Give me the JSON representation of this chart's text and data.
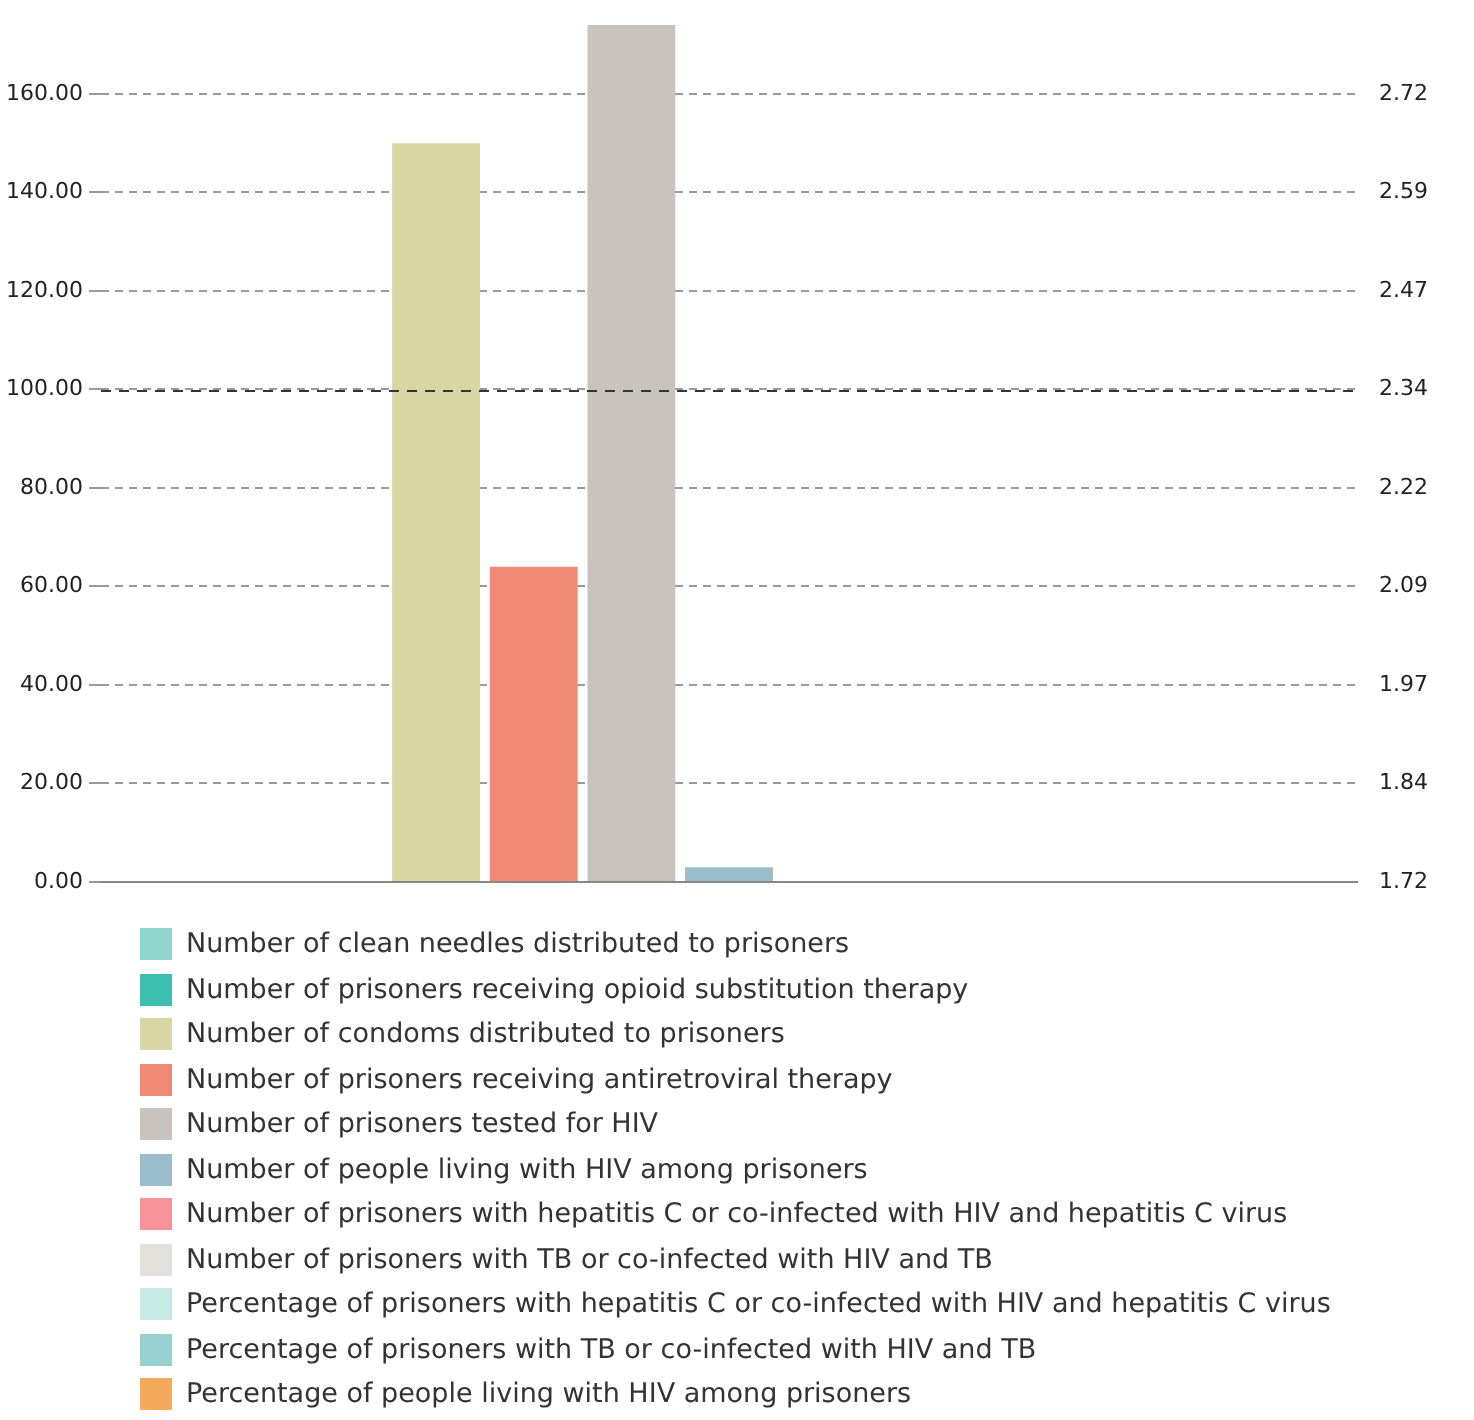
{
  "chart_data": {
    "type": "bar",
    "categories": [
      null
    ],
    "series": [
      {
        "name": "Number of clean needles distributed to prisoners",
        "color": "#8fd5cc",
        "values": [
          null
        ]
      },
      {
        "name": "Number of prisoners receiving opioid substitution therapy",
        "color": "#3cbfae",
        "values": [
          null
        ]
      },
      {
        "name": "Number of condoms distributed to prisoners",
        "color": "#d8d6a3",
        "values": [
          150
        ]
      },
      {
        "name": "Number of prisoners receiving antiretroviral therapy",
        "color": "#f08a75",
        "values": [
          64
        ]
      },
      {
        "name": "Number of prisoners tested for HIV",
        "color": "#c9c3be",
        "values": [
          174
        ]
      },
      {
        "name": "Number of people living with HIV among prisoners",
        "color": "#9bbccb",
        "values": [
          3
        ]
      },
      {
        "name": "Number of prisoners with hepatitis C or co-infected with HIV and hepatitis C virus",
        "color": "#f6949a",
        "values": [
          null
        ]
      },
      {
        "name": "Number of prisoners with TB or co-infected with HIV and TB",
        "color": "#e2e1dc",
        "values": [
          null
        ]
      },
      {
        "name": "Percentage of prisoners with hepatitis C or co-infected with HIV and hepatitis C virus",
        "color": "#c8ebe6",
        "values": [
          null
        ]
      },
      {
        "name": "Percentage of prisoners with TB or co-infected with HIV and TB",
        "color": "#97d0d0",
        "values": [
          null
        ]
      },
      {
        "name": "Percentage of people living with HIV among prisoners",
        "color": "#f5a95a",
        "values": [
          null
        ]
      }
    ],
    "ylim": [
      0,
      175
    ],
    "yticks": [
      {
        "value": 0,
        "label": "0.00"
      },
      {
        "value": 20,
        "label": "20.00"
      },
      {
        "value": 40,
        "label": "40.00"
      },
      {
        "value": 60,
        "label": "60.00"
      },
      {
        "value": 80,
        "label": "80.00"
      },
      {
        "value": 100,
        "label": "100.00"
      },
      {
        "value": 120,
        "label": "120.00"
      },
      {
        "value": 140,
        "label": "140.00"
      },
      {
        "value": 160,
        "label": "160.00"
      }
    ],
    "y2lim": [
      1.72,
      2.814
    ],
    "y2ticks": [
      {
        "value": 1.72,
        "label": "1.72"
      },
      {
        "value": 1.845,
        "label": "1.84"
      },
      {
        "value": 1.97,
        "label": "1.97"
      },
      {
        "value": 2.095,
        "label": "2.09"
      },
      {
        "value": 2.22,
        "label": "2.22"
      },
      {
        "value": 2.345,
        "label": "2.34"
      },
      {
        "value": 2.47,
        "label": "2.47"
      },
      {
        "value": 2.595,
        "label": "2.59"
      },
      {
        "value": 2.72,
        "label": "2.72"
      }
    ],
    "ref_lines": [
      {
        "axis": "y",
        "value": 100,
        "color": "#333333",
        "line_style": "dashed"
      }
    ],
    "grid": "y",
    "legend": "bottom"
  }
}
